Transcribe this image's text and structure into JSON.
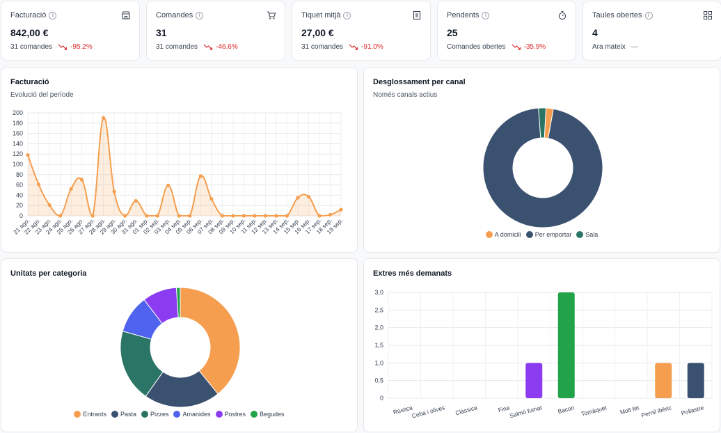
{
  "kpis": [
    {
      "title": "Facturació",
      "value": "842,00 €",
      "sub": "31 comandes",
      "delta": "-95.2%",
      "icon": "store-icon"
    },
    {
      "title": "Comandes",
      "value": "31",
      "sub": "31 comandes",
      "delta": "-46.6%",
      "icon": "cart-icon"
    },
    {
      "title": "Tiquet mitjà",
      "value": "27,00 €",
      "sub": "31 comandes",
      "delta": "-91.0%",
      "icon": "receipt-icon"
    },
    {
      "title": "Pendents",
      "value": "25",
      "sub": "Comandes obertes",
      "delta": "-35.9%",
      "icon": "stopwatch-icon"
    },
    {
      "title": "Taules obertes",
      "value": "4",
      "sub": "Ara mateix",
      "delta": "—",
      "icon": "grid-icon"
    }
  ],
  "billing": {
    "title": "Facturació",
    "subtitle": "Evolució del període"
  },
  "channels": {
    "title": "Desglossament per canal",
    "subtitle": "Només canals actius"
  },
  "categories": {
    "title": "Unitats per categoria"
  },
  "extras": {
    "title": "Extres més demanats"
  },
  "colors": {
    "orange": "#f59e4f",
    "navy": "#3b5170",
    "teal": "#2a7566",
    "blue": "#4f63ee",
    "purple": "#8b3cf0",
    "green": "#22a34a",
    "delta": "#dc2626"
  },
  "chart_data": [
    {
      "type": "area",
      "categories": [
        "21 ago.",
        "22 ago.",
        "23 ago.",
        "24 ago.",
        "25 ago.",
        "26 ago.",
        "27 ago.",
        "28 ago.",
        "29 ago.",
        "30 ago.",
        "31 ago.",
        "01 sep.",
        "02 sep.",
        "03 sep.",
        "04 sep.",
        "05 sep.",
        "06 sep.",
        "07 sep.",
        "08 sep.",
        "09 sep.",
        "10 sep.",
        "11 sep.",
        "12 sep.",
        "13 sep.",
        "14 sep.",
        "15 sep.",
        "16 sep.",
        "17 sep.",
        "18 sep.",
        "19 sep."
      ],
      "values": [
        118,
        61,
        21,
        0,
        52,
        70,
        0,
        190,
        47,
        0,
        29,
        0,
        0,
        59,
        0,
        0,
        77,
        33,
        0,
        0,
        0,
        0,
        0,
        0,
        0,
        35,
        37,
        0,
        2,
        12
      ],
      "yticks": [
        "200",
        "180",
        "160",
        "140",
        "120",
        "100",
        "80",
        "60",
        "40",
        "20",
        "0"
      ],
      "ylim": [
        0,
        200
      ],
      "grid": true
    },
    {
      "type": "pie",
      "labels": [
        "A domicili",
        "Per emportar",
        "Sala"
      ],
      "values": [
        2,
        96,
        2
      ],
      "legend": "bottom"
    },
    {
      "type": "pie",
      "labels": [
        "Entrants",
        "Pasta",
        "Pizzes",
        "Amanides",
        "Postres",
        "Begudes"
      ],
      "values": [
        38,
        20,
        19,
        10,
        9,
        1
      ],
      "legend": "bottom"
    },
    {
      "type": "bar",
      "categories": [
        "Rústica",
        "Ceba i olives",
        "Clàssica",
        "Fina",
        "Salmó fumat",
        "Bacon",
        "Tomàquet",
        "Molt fet",
        "Pernil ibèric",
        "Pollastre"
      ],
      "values": [
        0,
        0,
        0,
        0,
        1,
        3,
        0,
        0,
        1,
        1
      ],
      "yticks": [
        "3,0",
        "2,5",
        "2,0",
        "1,5",
        "1,0",
        "0,5",
        "0"
      ],
      "ylim": [
        0,
        3
      ],
      "grid": true
    }
  ]
}
